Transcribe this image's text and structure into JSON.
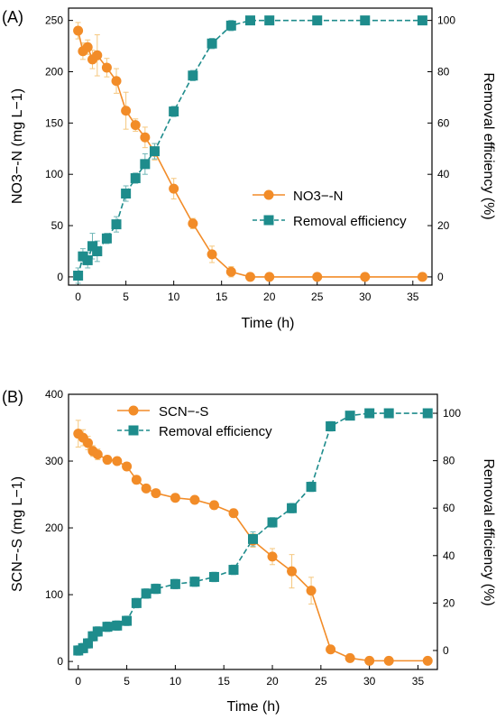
{
  "colors": {
    "orange": "#F28C28",
    "orange_err": "#F5C77E",
    "teal": "#1E8C8C",
    "teal_err": "#6FB6B6"
  },
  "panels": [
    {
      "panel_label": "(A)",
      "chart_data": {
        "type": "line",
        "xlabel": "Time (h)",
        "ylabel": "NO3−-N (mg L−1)",
        "ylabel_right": "Removal efficiency (%)",
        "xlim": [
          -1,
          37
        ],
        "ylim": [
          -8,
          262
        ],
        "ylim_right": [
          -3.2,
          104.8
        ],
        "x_ticks": [
          0,
          5,
          10,
          15,
          20,
          25,
          30,
          35
        ],
        "y_ticks": [
          0,
          50,
          100,
          150,
          200,
          250
        ],
        "y_ticks_right": [
          0,
          20,
          40,
          60,
          80,
          100
        ],
        "legend_position": "center-right",
        "series": [
          {
            "name": "NO3−-N",
            "axis": "left",
            "marker": "circle",
            "x": [
              0,
              0.5,
              1,
              1.5,
              2,
              3,
              4,
              5,
              6,
              7,
              8,
              10,
              12,
              14,
              16,
              18,
              20,
              25,
              30,
              36
            ],
            "y": [
              240,
              220,
              224,
              212,
              216,
              204,
              191,
              162,
              148,
              136,
              122,
              86,
              52,
              22,
              5,
              0,
              0,
              0,
              0,
              0
            ],
            "err": [
              8,
              8,
              7,
              9,
              20,
              9,
              12,
              18,
              6,
              10,
              8,
              10,
              5,
              8,
              5,
              2,
              1,
              1,
              1,
              1
            ]
          },
          {
            "name": "Removal efficiency",
            "axis": "right",
            "marker": "square",
            "x": [
              0,
              0.5,
              1,
              1.5,
              2,
              3,
              4,
              5,
              6,
              7,
              8,
              10,
              12,
              14,
              16,
              18,
              20,
              25,
              30,
              36
            ],
            "y": [
              0.5,
              8,
              6.5,
              12,
              10,
              15,
              20.5,
              32.5,
              38.5,
              44,
              49,
              64.5,
              78.5,
              91,
              98,
              100,
              100,
              100,
              100,
              100
            ],
            "err": [
              3,
              3,
              3,
              5,
              4,
              2,
              3,
              3,
              2,
              4,
              3,
              2,
              2,
              2,
              2,
              1,
              1,
              1,
              1,
              1
            ]
          }
        ]
      }
    },
    {
      "panel_label": "(B)",
      "chart_data": {
        "type": "line",
        "xlabel": "Time (h)",
        "ylabel": "SCN−-S (mg L−1)",
        "ylabel_right": "Removal efficiency (%)",
        "xlim": [
          -1,
          37
        ],
        "ylim": [
          -12,
          400
        ],
        "ylim_right": [
          -8,
          108
        ],
        "x_ticks": [
          0,
          5,
          10,
          15,
          20,
          25,
          30,
          35
        ],
        "y_ticks": [
          0,
          100,
          200,
          300,
          400
        ],
        "y_ticks_right": [
          0,
          20,
          40,
          60,
          80,
          100
        ],
        "legend_position": "top-left",
        "series": [
          {
            "name": "SCN−-S",
            "axis": "left",
            "marker": "circle",
            "x": [
              0,
              0.5,
              1,
              1.5,
              2,
              3,
              4,
              5,
              6,
              7,
              8,
              10,
              12,
              14,
              16,
              18,
              20,
              22,
              24,
              26,
              28,
              30,
              32,
              36
            ],
            "y": [
              341,
              335,
              327,
              315,
              310,
              302,
              300,
              292,
              272,
              259,
              252,
              245,
              242,
              234,
              222,
              181,
              157,
              135,
              106,
              18,
              5,
              1,
              1,
              1
            ],
            "err": [
              20,
              12,
              10,
              8,
              8,
              6,
              6,
              6,
              6,
              5,
              5,
              5,
              5,
              6,
              6,
              10,
              12,
              25,
              20,
              5,
              3,
              1,
              1,
              1
            ]
          },
          {
            "name": "Removal efficiency",
            "axis": "right",
            "marker": "square",
            "x": [
              0,
              0.5,
              1,
              1.5,
              2,
              3,
              4,
              5,
              6,
              7,
              8,
              10,
              12,
              14,
              16,
              18,
              20,
              22,
              24,
              26,
              28,
              30,
              32,
              36
            ],
            "y": [
              0,
              1,
              3,
              6,
              8,
              10,
              10.5,
              12.5,
              20,
              24,
              26,
              28,
              29,
              31,
              34,
              47,
              54,
              60,
              69,
              94.5,
              99,
              100,
              100,
              100
            ],
            "err": [
              2,
              2,
              2,
              2,
              2,
              2,
              2,
              2,
              2,
              2,
              2,
              2,
              2,
              2,
              2,
              3,
              2,
              2,
              2,
              2,
              1,
              1,
              1,
              1
            ]
          }
        ]
      }
    }
  ]
}
